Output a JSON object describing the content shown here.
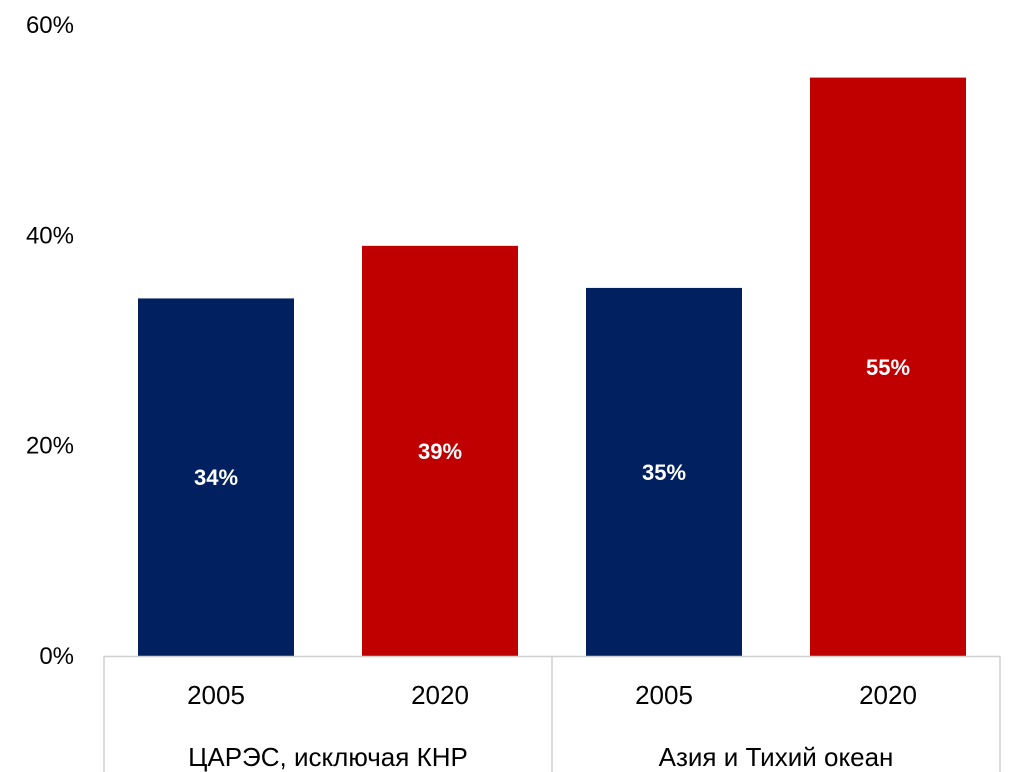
{
  "chart_data": {
    "type": "bar",
    "title": "",
    "xlabel": "",
    "ylabel": "",
    "ylim": [
      0,
      60
    ],
    "yticks": [
      0,
      20,
      40,
      60
    ],
    "ytick_labels": [
      "0%",
      "20%",
      "40%",
      "60%"
    ],
    "grid": false,
    "groups": [
      {
        "name": "ЦАРЭС, исключая КНР",
        "bars": [
          {
            "category": "2005",
            "value": 34,
            "label": "34%",
            "color": "#002060"
          },
          {
            "category": "2020",
            "value": 39,
            "label": "39%",
            "color": "#C00000"
          }
        ]
      },
      {
        "name": "Азия и Тихий океан",
        "bars": [
          {
            "category": "2005",
            "value": 35,
            "label": "35%",
            "color": "#002060"
          },
          {
            "category": "2020",
            "value": 55,
            "label": "55%",
            "color": "#C00000"
          }
        ]
      }
    ]
  }
}
